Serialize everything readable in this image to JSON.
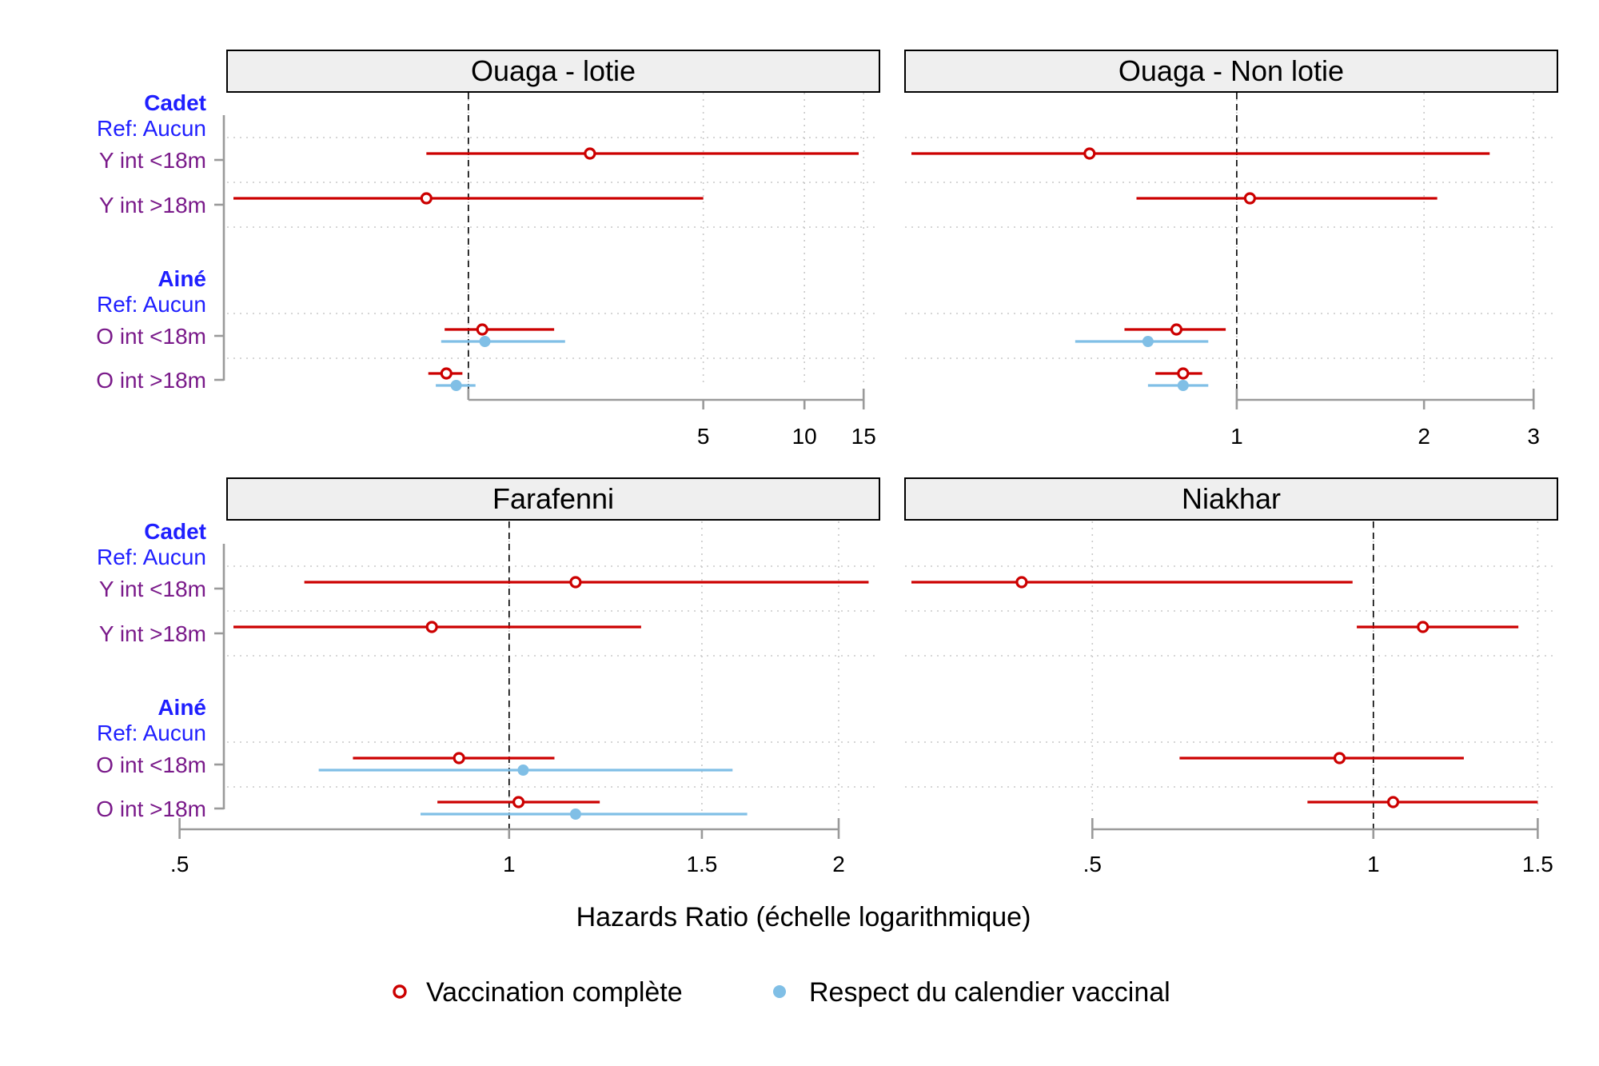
{
  "chart_data": {
    "type": "forest",
    "xlabel": "Hazards Ratio (échelle logarithmique)",
    "x_scale": "log",
    "legend": {
      "placement": "bottom",
      "entries": [
        {
          "name": "Vaccination complète",
          "color": "#cc0000",
          "marker": "open-circle"
        },
        {
          "name": "Respect du calendier vaccinal",
          "color": "#80bfe6",
          "marker": "filled-circle"
        }
      ]
    },
    "row_labels": [
      {
        "id": "h1",
        "text": "Cadet",
        "kind": "head"
      },
      {
        "id": "r1",
        "text": "Ref: Aucun",
        "kind": "ref"
      },
      {
        "id": "y18l",
        "text": "Y int <18m",
        "kind": "item"
      },
      {
        "id": "y18g",
        "text": "Y int >18m",
        "kind": "item"
      },
      {
        "id": "h2",
        "text": "Ainé",
        "kind": "head"
      },
      {
        "id": "r2",
        "text": "Ref: Aucun",
        "kind": "ref"
      },
      {
        "id": "o18l",
        "text": "O int <18m",
        "kind": "item"
      },
      {
        "id": "o18g",
        "text": "O int >18m",
        "kind": "item"
      }
    ],
    "panels": [
      {
        "title": "Ouaga - lotie",
        "ticks": [
          {
            "v": 5,
            "label": "5"
          },
          {
            "v": 10,
            "label": "10"
          },
          {
            "v": 15,
            "label": "15"
          }
        ],
        "grid": [
          1,
          5,
          10,
          15
        ],
        "ref": 1,
        "xlim": [
          0.2,
          16
        ],
        "axis_range": [
          1,
          15
        ],
        "series": [
          {
            "name": "Vaccination complète",
            "points": [
              {
                "row": "Y int <18m",
                "est": 2.3,
                "lo": 0.75,
                "hi": 14.5
              },
              {
                "row": "Y int >18m",
                "est": 0.75,
                "lo": 0.2,
                "hi": 5.0
              },
              {
                "row": "O int <18m",
                "est": 1.1,
                "lo": 0.85,
                "hi": 1.8
              },
              {
                "row": "O int >18m",
                "est": 0.86,
                "lo": 0.76,
                "hi": 0.96
              }
            ]
          },
          {
            "name": "Respect du calendier vaccinal",
            "points": [
              {
                "row": "O int <18m",
                "est": 1.12,
                "lo": 0.83,
                "hi": 1.94
              },
              {
                "row": "O int >18m",
                "est": 0.92,
                "lo": 0.8,
                "hi": 1.05
              }
            ]
          }
        ]
      },
      {
        "title": "Ouaga - Non lotie",
        "ticks": [
          {
            "v": 1,
            "label": "1"
          },
          {
            "v": 2,
            "label": "2"
          },
          {
            "v": 3,
            "label": "3"
          }
        ],
        "grid": [
          1,
          2,
          3
        ],
        "ref": 1,
        "xlim": [
          0.3,
          3.2
        ],
        "axis_range": [
          1,
          3
        ],
        "series": [
          {
            "name": "Vaccination complète",
            "points": [
              {
                "row": "Y int <18m",
                "est": 0.58,
                "lo": 0.3,
                "hi": 2.55
              },
              {
                "row": "Y int >18m",
                "est": 1.05,
                "lo": 0.69,
                "hi": 2.1
              }
            ]
          },
          {
            "name": "Respect du calendier vaccinal",
            "points": [
              {
                "row": "O int <18m",
                "est": 0.72,
                "lo": 0.55,
                "hi": 0.9
              }
            ]
          }
        ],
        "series_extra": [
          {
            "name": "Vaccination complète",
            "points": [
              {
                "row": "O int <18m",
                "est": 0.8,
                "lo": 0.66,
                "hi": 0.96
              },
              {
                "row": "O int >18m",
                "est": 0.82,
                "lo": 0.74,
                "hi": 0.88
              }
            ]
          },
          {
            "name": "Respect du calendier vaccinal",
            "points": [
              {
                "row": "O int >18m",
                "est": 0.82,
                "lo": 0.72,
                "hi": 0.9
              }
            ]
          }
        ]
      },
      {
        "title": "Farafenni",
        "ticks": [
          {
            "v": 0.5,
            "label": ".5"
          },
          {
            "v": 1,
            "label": "1"
          },
          {
            "v": 1.5,
            "label": "1.5"
          },
          {
            "v": 2,
            "label": "2"
          }
        ],
        "grid": [
          0.5,
          1,
          1.5,
          2
        ],
        "ref": 1,
        "xlim": [
          0.56,
          2.15
        ],
        "axis_range": [
          0.5,
          2
        ],
        "series": [
          {
            "name": "Vaccination complète",
            "points": [
              {
                "row": "Y int <18m",
                "est": 1.15,
                "lo": 0.65,
                "hi": 2.13
              },
              {
                "row": "Y int >18m",
                "est": 0.85,
                "lo": 0.56,
                "hi": 1.32
              },
              {
                "row": "O int <18m",
                "est": 0.9,
                "lo": 0.72,
                "hi": 1.1
              },
              {
                "row": "O int >18m",
                "est": 1.02,
                "lo": 0.86,
                "hi": 1.21
              }
            ]
          },
          {
            "name": "Respect du calendier vaccinal",
            "points": [
              {
                "row": "O int <18m",
                "est": 1.03,
                "lo": 0.67,
                "hi": 1.6
              },
              {
                "row": "O int >18m",
                "est": 1.15,
                "lo": 0.83,
                "hi": 1.65
              }
            ]
          }
        ]
      },
      {
        "title": "Niakhar",
        "ticks": [
          {
            "v": 0.5,
            "label": ".5"
          },
          {
            "v": 1,
            "label": "1"
          },
          {
            "v": 1.5,
            "label": "1.5"
          }
        ],
        "grid": [
          0.5,
          1,
          1.5
        ],
        "ref": 1,
        "xlim": [
          0.32,
          1.55
        ],
        "axis_range": [
          0.5,
          1.5
        ],
        "series": [
          {
            "name": "Vaccination complète",
            "points": [
              {
                "row": "Y int <18m",
                "est": 0.42,
                "lo": 0.32,
                "hi": 0.95
              },
              {
                "row": "Y int >18m",
                "est": 1.13,
                "lo": 0.96,
                "hi": 1.43
              },
              {
                "row": "O int <18m",
                "est": 0.92,
                "lo": 0.62,
                "hi": 1.25
              },
              {
                "row": "O int >18m",
                "est": 1.05,
                "lo": 0.85,
                "hi": 1.5
              }
            ]
          }
        ]
      }
    ]
  }
}
